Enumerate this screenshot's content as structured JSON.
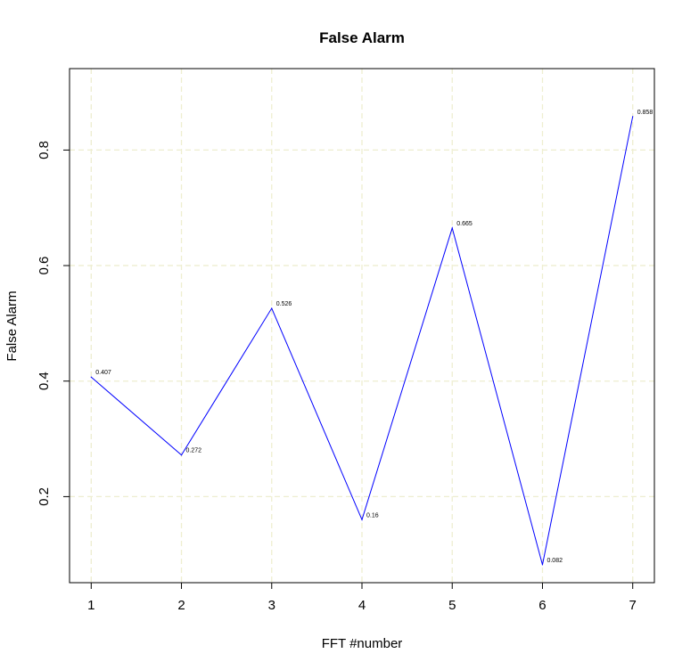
{
  "chart_data": {
    "type": "line",
    "title": "False Alarm",
    "xlabel": "FFT #number",
    "ylabel": "False Alarm",
    "x": [
      1,
      2,
      3,
      4,
      5,
      6,
      7
    ],
    "series": [
      {
        "values": [
          0.407,
          0.272,
          0.526,
          0.16,
          0.665,
          0.082,
          0.858
        ],
        "color": "#0000ff"
      }
    ],
    "data_labels": [
      "0.407",
      "0.272",
      "0.526",
      "0.16",
      "0.665",
      "0.082",
      "0.858"
    ],
    "xlim": [
      0.76,
      7.24
    ],
    "ylim": [
      0.051,
      0.941
    ],
    "xticks": [
      1,
      2,
      3,
      4,
      5,
      6,
      7
    ],
    "xtick_labels": [
      "1",
      "2",
      "3",
      "4",
      "5",
      "6",
      "7"
    ],
    "yticks": [
      0.2,
      0.4,
      0.6,
      0.8
    ],
    "ytick_labels": [
      "0.2",
      "0.4",
      "0.6",
      "0.8"
    ],
    "grid": true,
    "grid_color": "#eeeed0",
    "legend": "none"
  }
}
